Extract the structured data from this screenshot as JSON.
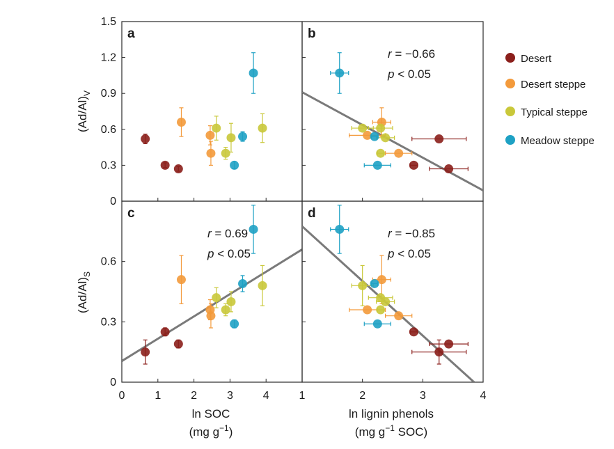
{
  "colors": {
    "Desert": "#8b1f1b",
    "Desert steppe": "#f39a3b",
    "Typical steppe": "#c9c83a",
    "Meadow steppe": "#1ea1c4",
    "fit_line": "#7a7a7a",
    "frame": "#2a2a2a"
  },
  "legend": {
    "position": "right",
    "entries": [
      "Desert",
      "Desert steppe",
      "Typical steppe",
      "Meadow steppe"
    ]
  },
  "axis_titles": {
    "y_top": [
      "(Ad/Al)",
      "V"
    ],
    "y_bottom": [
      "(Ad/Al)",
      "S"
    ],
    "x_left_line1": "ln SOC",
    "x_left_line2": [
      "(mg g",
      "−1",
      ")"
    ],
    "x_right_line1": "ln lignin phenols",
    "x_right_line2": [
      "(mg g",
      "−1",
      " SOC)"
    ]
  },
  "chart_data": [
    {
      "panel": "a",
      "type": "scatter",
      "xlim": [
        0,
        5
      ],
      "ylim": [
        0,
        1.5
      ],
      "xticks": [
        "0",
        "1",
        "2",
        "3",
        "4"
      ],
      "yticks": [
        "0",
        "0.3",
        "0.6",
        "0.9",
        "1.2",
        "1.5"
      ],
      "stats": null,
      "fit": null,
      "points": [
        {
          "g": "Desert",
          "x": 0.65,
          "y": 0.52,
          "yerr": 0.04
        },
        {
          "g": "Desert",
          "x": 1.2,
          "y": 0.3,
          "yerr": 0.02
        },
        {
          "g": "Desert",
          "x": 1.57,
          "y": 0.27,
          "yerr": 0.02
        },
        {
          "g": "Desert steppe",
          "x": 1.65,
          "y": 0.66,
          "yerr": 0.12
        },
        {
          "g": "Desert steppe",
          "x": 2.45,
          "y": 0.55,
          "yerr": 0.08
        },
        {
          "g": "Desert steppe",
          "x": 2.47,
          "y": 0.4,
          "yerr": 0.1
        },
        {
          "g": "Typical steppe",
          "x": 2.62,
          "y": 0.61,
          "yerr": 0.1
        },
        {
          "g": "Typical steppe",
          "x": 2.88,
          "y": 0.4,
          "yerr": 0.05
        },
        {
          "g": "Typical steppe",
          "x": 3.03,
          "y": 0.53,
          "yerr": 0.12
        },
        {
          "g": "Typical steppe",
          "x": 3.9,
          "y": 0.61,
          "yerr": 0.12
        },
        {
          "g": "Meadow steppe",
          "x": 3.12,
          "y": 0.3,
          "yerr": 0.03
        },
        {
          "g": "Meadow steppe",
          "x": 3.35,
          "y": 0.54,
          "yerr": 0.04
        },
        {
          "g": "Meadow steppe",
          "x": 3.65,
          "y": 1.07,
          "yerr": 0.17
        }
      ]
    },
    {
      "panel": "b",
      "type": "scatter",
      "xlim": [
        1,
        4
      ],
      "ylim": [
        0,
        1.5
      ],
      "xticks": [
        "1",
        "2",
        "3",
        "4"
      ],
      "yticks": [],
      "stats": {
        "r": "= −0.66",
        "p": "< 0.05"
      },
      "fit": {
        "x": [
          1,
          4
        ],
        "y": [
          0.91,
          0.09
        ]
      },
      "points": [
        {
          "g": "Desert",
          "x": 2.85,
          "y": 0.3,
          "xerr": 0.06
        },
        {
          "g": "Desert",
          "x": 3.27,
          "y": 0.52,
          "xerr": 0.45
        },
        {
          "g": "Desert",
          "x": 3.43,
          "y": 0.27,
          "xerr": 0.32
        },
        {
          "g": "Desert steppe",
          "x": 2.32,
          "y": 0.66,
          "xerr": 0.15,
          "yerr": 0.12
        },
        {
          "g": "Desert steppe",
          "x": 2.08,
          "y": 0.55,
          "xerr": 0.3
        },
        {
          "g": "Desert steppe",
          "x": 2.6,
          "y": 0.4,
          "xerr": 0.22
        },
        {
          "g": "Typical steppe",
          "x": 2.0,
          "y": 0.61,
          "xerr": 0.18
        },
        {
          "g": "Typical steppe",
          "x": 2.3,
          "y": 0.61,
          "xerr": 0.2
        },
        {
          "g": "Typical steppe",
          "x": 2.38,
          "y": 0.53,
          "xerr": 0.15
        },
        {
          "g": "Typical steppe",
          "x": 2.3,
          "y": 0.4,
          "xerr": 0.05
        },
        {
          "g": "Meadow steppe",
          "x": 1.62,
          "y": 1.07,
          "xerr": 0.15,
          "yerr": 0.17
        },
        {
          "g": "Meadow steppe",
          "x": 2.2,
          "y": 0.54,
          "xerr": 0.05
        },
        {
          "g": "Meadow steppe",
          "x": 2.25,
          "y": 0.3,
          "xerr": 0.22
        }
      ]
    },
    {
      "panel": "c",
      "type": "scatter",
      "xlim": [
        0,
        5
      ],
      "ylim": [
        0,
        0.9
      ],
      "xticks": [
        "0",
        "1",
        "2",
        "3",
        "4"
      ],
      "yticks": [
        "0",
        "0.3",
        "0.6"
      ],
      "stats": {
        "r": "= 0.69",
        "p": "< 0.05"
      },
      "fit": {
        "x": [
          0,
          5
        ],
        "y": [
          0.105,
          0.66
        ]
      },
      "points": [
        {
          "g": "Desert",
          "x": 0.65,
          "y": 0.15,
          "yerr": 0.06
        },
        {
          "g": "Desert",
          "x": 1.2,
          "y": 0.25,
          "yerr": 0.02
        },
        {
          "g": "Desert",
          "x": 1.57,
          "y": 0.19,
          "yerr": 0.02
        },
        {
          "g": "Desert steppe",
          "x": 1.65,
          "y": 0.51,
          "yerr": 0.12
        },
        {
          "g": "Desert steppe",
          "x": 2.45,
          "y": 0.36,
          "yerr": 0.05
        },
        {
          "g": "Desert steppe",
          "x": 2.47,
          "y": 0.33,
          "yerr": 0.06
        },
        {
          "g": "Typical steppe",
          "x": 2.62,
          "y": 0.42,
          "yerr": 0.05
        },
        {
          "g": "Typical steppe",
          "x": 2.88,
          "y": 0.36,
          "yerr": 0.03
        },
        {
          "g": "Typical steppe",
          "x": 3.03,
          "y": 0.4,
          "yerr": 0.05
        },
        {
          "g": "Typical steppe",
          "x": 3.9,
          "y": 0.48,
          "yerr": 0.1
        },
        {
          "g": "Meadow steppe",
          "x": 3.12,
          "y": 0.29,
          "yerr": 0.02
        },
        {
          "g": "Meadow steppe",
          "x": 3.35,
          "y": 0.49,
          "yerr": 0.04
        },
        {
          "g": "Meadow steppe",
          "x": 3.65,
          "y": 0.76,
          "yerr": 0.12
        }
      ]
    },
    {
      "panel": "d",
      "type": "scatter",
      "xlim": [
        1,
        4
      ],
      "ylim": [
        0,
        0.9
      ],
      "xticks": [
        "1",
        "2",
        "3",
        "4"
      ],
      "yticks": [],
      "stats": {
        "r": "= −0.85",
        "p": "< 0.05"
      },
      "fit": {
        "x": [
          1,
          3.85
        ],
        "y": [
          0.775,
          0
        ]
      },
      "points": [
        {
          "g": "Desert",
          "x": 2.85,
          "y": 0.25,
          "xerr": 0.06
        },
        {
          "g": "Desert",
          "x": 3.27,
          "y": 0.15,
          "xerr": 0.45,
          "yerr": 0.06
        },
        {
          "g": "Desert",
          "x": 3.43,
          "y": 0.19,
          "xerr": 0.32
        },
        {
          "g": "Desert steppe",
          "x": 2.32,
          "y": 0.51,
          "xerr": 0.15,
          "yerr": 0.12
        },
        {
          "g": "Desert steppe",
          "x": 2.08,
          "y": 0.36,
          "xerr": 0.3
        },
        {
          "g": "Desert steppe",
          "x": 2.6,
          "y": 0.33,
          "xerr": 0.22
        },
        {
          "g": "Typical steppe",
          "x": 2.0,
          "y": 0.48,
          "xerr": 0.18,
          "yerr": 0.1
        },
        {
          "g": "Typical steppe",
          "x": 2.3,
          "y": 0.42,
          "xerr": 0.2
        },
        {
          "g": "Typical steppe",
          "x": 2.38,
          "y": 0.4,
          "xerr": 0.15
        },
        {
          "g": "Typical steppe",
          "x": 2.3,
          "y": 0.36,
          "xerr": 0.05
        },
        {
          "g": "Meadow steppe",
          "x": 1.62,
          "y": 0.76,
          "xerr": 0.15,
          "yerr": 0.12
        },
        {
          "g": "Meadow steppe",
          "x": 2.2,
          "y": 0.49,
          "xerr": 0.05
        },
        {
          "g": "Meadow steppe",
          "x": 2.25,
          "y": 0.29,
          "xerr": 0.22
        }
      ]
    }
  ]
}
